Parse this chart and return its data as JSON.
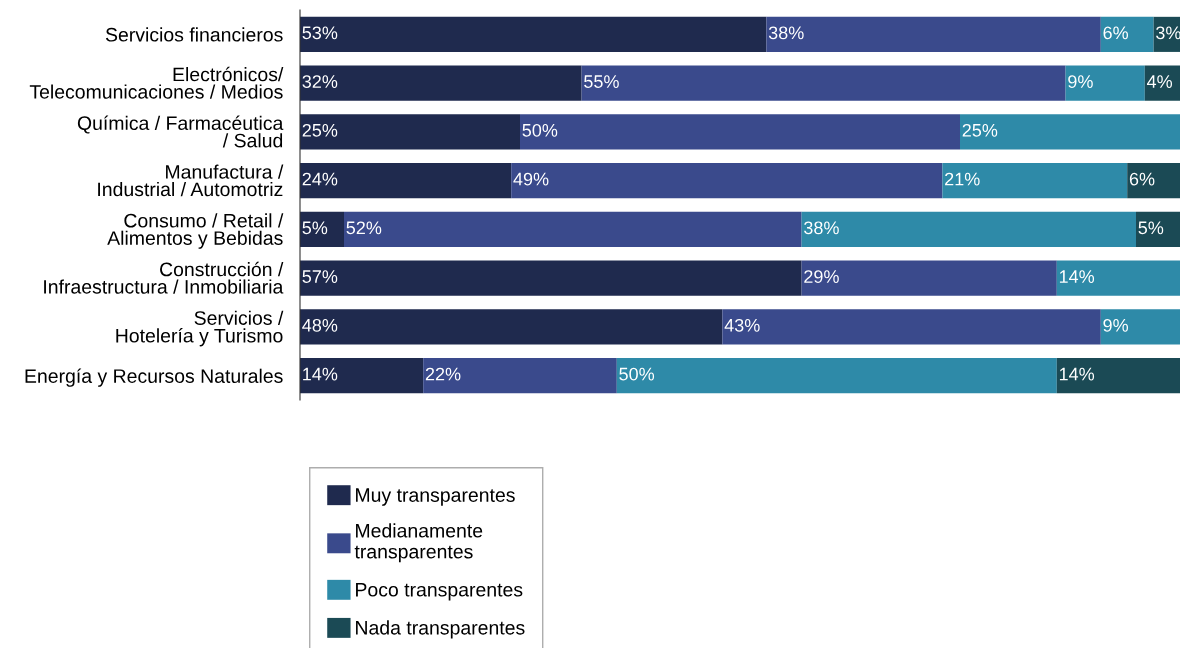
{
  "chart_data": {
    "type": "bar",
    "orientation": "horizontal",
    "stacked": true,
    "tick_labels": "y",
    "xlim": [
      0,
      100
    ],
    "grid": false,
    "legend": "bottom",
    "categories": [
      "Servicios financieros",
      "Electrónicos/\nTelecomunicaciones / Medios",
      "Química / Farmacéutica\n/ Salud",
      "Manufactura /\nIndustrial / Automotriz",
      "Consumo / Retail /\nAlimentos y Bebidas",
      "Construcción /\nInfraestructura / Inmobiliaria",
      "Servicios /\nHotelería y Turismo",
      "Energía y Recursos Naturales"
    ],
    "series": [
      {
        "name": "Muy transparentes",
        "color": "#1f2a4e",
        "values": [
          53,
          32,
          25,
          24,
          5,
          57,
          48,
          14
        ],
        "value_labels": [
          "53%",
          "32%",
          "25%",
          "24%",
          "5%",
          "57%",
          "48%",
          "14%"
        ]
      },
      {
        "name": "Medianamente\ntransparentes",
        "color": "#3a4a8c",
        "values": [
          38,
          55,
          50,
          49,
          52,
          29,
          43,
          22
        ],
        "value_labels": [
          "38%",
          "55%",
          "50%",
          "49%",
          "52%",
          "29%",
          "43%",
          "22%"
        ]
      },
      {
        "name": "Poco transparentes",
        "color": "#2e8aa8",
        "values": [
          6,
          9,
          25,
          21,
          38,
          14,
          9,
          50
        ],
        "value_labels": [
          "6%",
          "9%",
          "25%",
          "21%",
          "38%",
          "14%",
          "9%",
          "50%"
        ]
      },
      {
        "name": "Nada transparentes",
        "color": "#1b4a55",
        "values": [
          3,
          4,
          null,
          6,
          5,
          null,
          null,
          14
        ],
        "value_labels": [
          "3%",
          "4%",
          null,
          "6%",
          "5%",
          null,
          null,
          "14%"
        ]
      }
    ]
  }
}
